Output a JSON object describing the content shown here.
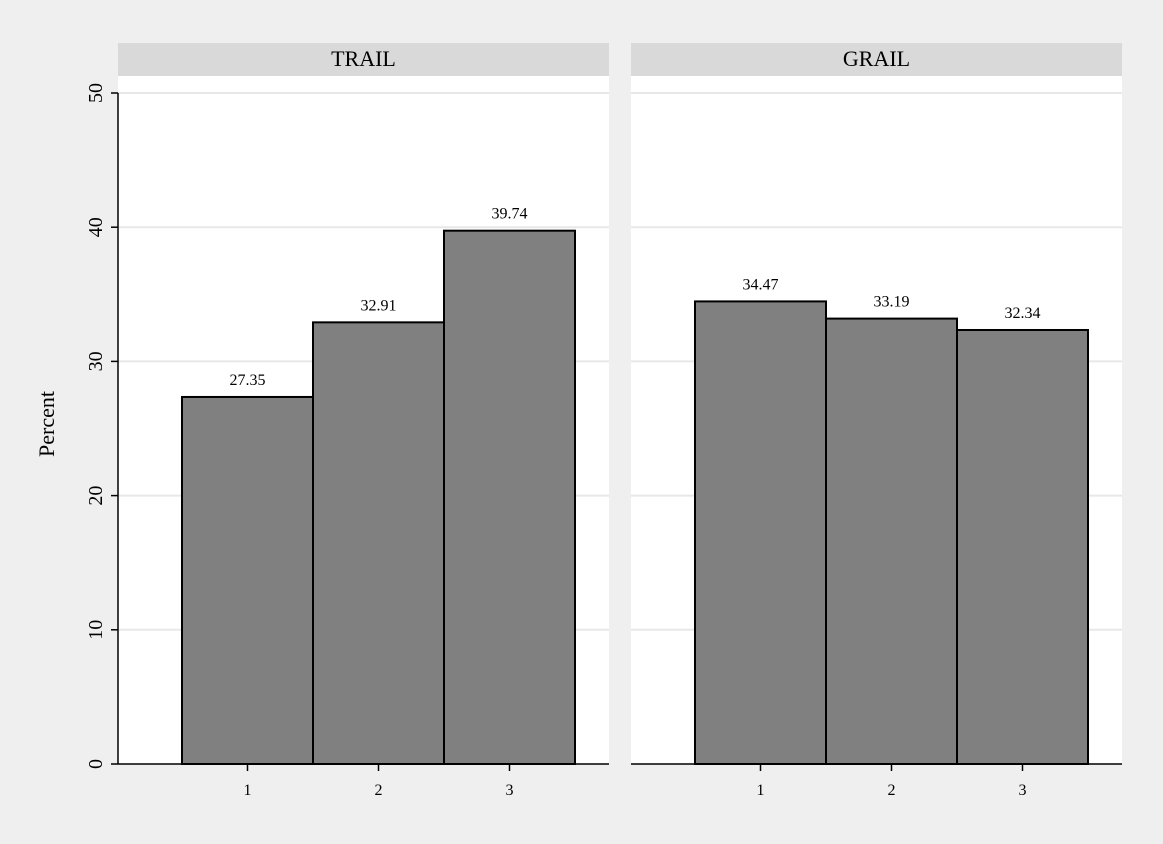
{
  "colors": {
    "outer_bg": "#efefef",
    "plot_bg": "#ffffff",
    "strip_bg": "#d9d9d9",
    "bar_fill": "#808080",
    "bar_stroke": "#000000",
    "grid": "#e8e8e8",
    "axis": "#000000"
  },
  "chart_data": {
    "type": "bar",
    "ylabel": "Percent",
    "ylim": [
      0,
      50
    ],
    "yticks": [
      0,
      10,
      20,
      30,
      40,
      50
    ],
    "grid": true,
    "panels": [
      {
        "title": "TRAIL",
        "categories": [
          "1",
          "2",
          "3"
        ],
        "values": [
          27.35,
          32.91,
          39.74
        ],
        "value_labels": [
          "27.35",
          "32.91",
          "39.74"
        ]
      },
      {
        "title": "GRAIL",
        "categories": [
          "1",
          "2",
          "3"
        ],
        "values": [
          34.47,
          33.19,
          32.34
        ],
        "value_labels": [
          "34.47",
          "33.19",
          "32.34"
        ]
      }
    ]
  }
}
